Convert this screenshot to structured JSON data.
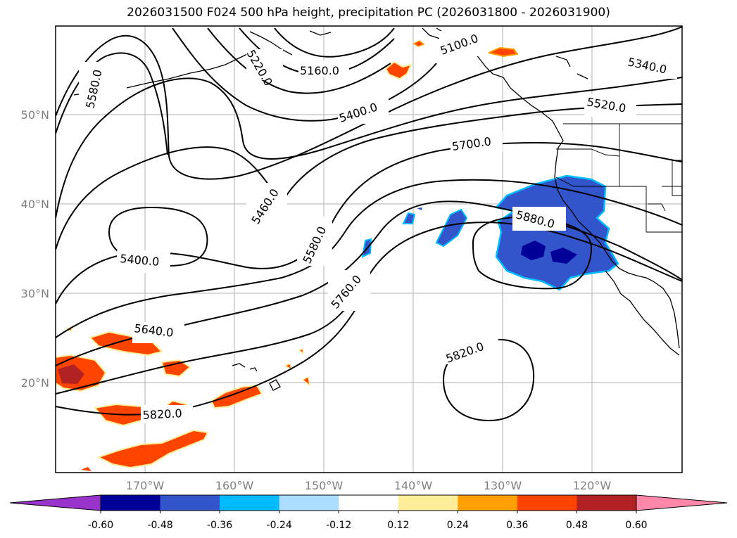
{
  "title": "2026031500 F024 500 hPa height, precipitation PC (2026031800 - 2026031900)",
  "map": {
    "lat_labels": [
      "50°N",
      "40°N",
      "30°N",
      "20°N"
    ],
    "lon_labels": [
      "170°W",
      "160°W",
      "150°W",
      "140°W",
      "130°W",
      "120°W"
    ],
    "gridlines": true
  },
  "contour_labels": [
    "5580.0",
    "5220.0",
    "5160.0",
    "5100.0",
    "5340.0",
    "5400.0",
    "5520.0",
    "5700.0",
    "5460.0",
    "5880.0",
    "5400.0",
    "5580.0",
    "5760.0",
    "5640.0",
    "5820.0",
    "5820.0"
  ],
  "colorbar": {
    "ticks": [
      "-0.60",
      "-0.48",
      "-0.36",
      "-0.24",
      "-0.12",
      "0.12",
      "0.24",
      "0.36",
      "0.48",
      "0.60"
    ],
    "colors": [
      "#9933cc",
      "#000099",
      "#3355cc",
      "#00bbff",
      "#aaddff",
      "#ffffff",
      "#ffee99",
      "#ffa000",
      "#ff4400",
      "#b22222",
      "#ff88aa"
    ]
  }
}
